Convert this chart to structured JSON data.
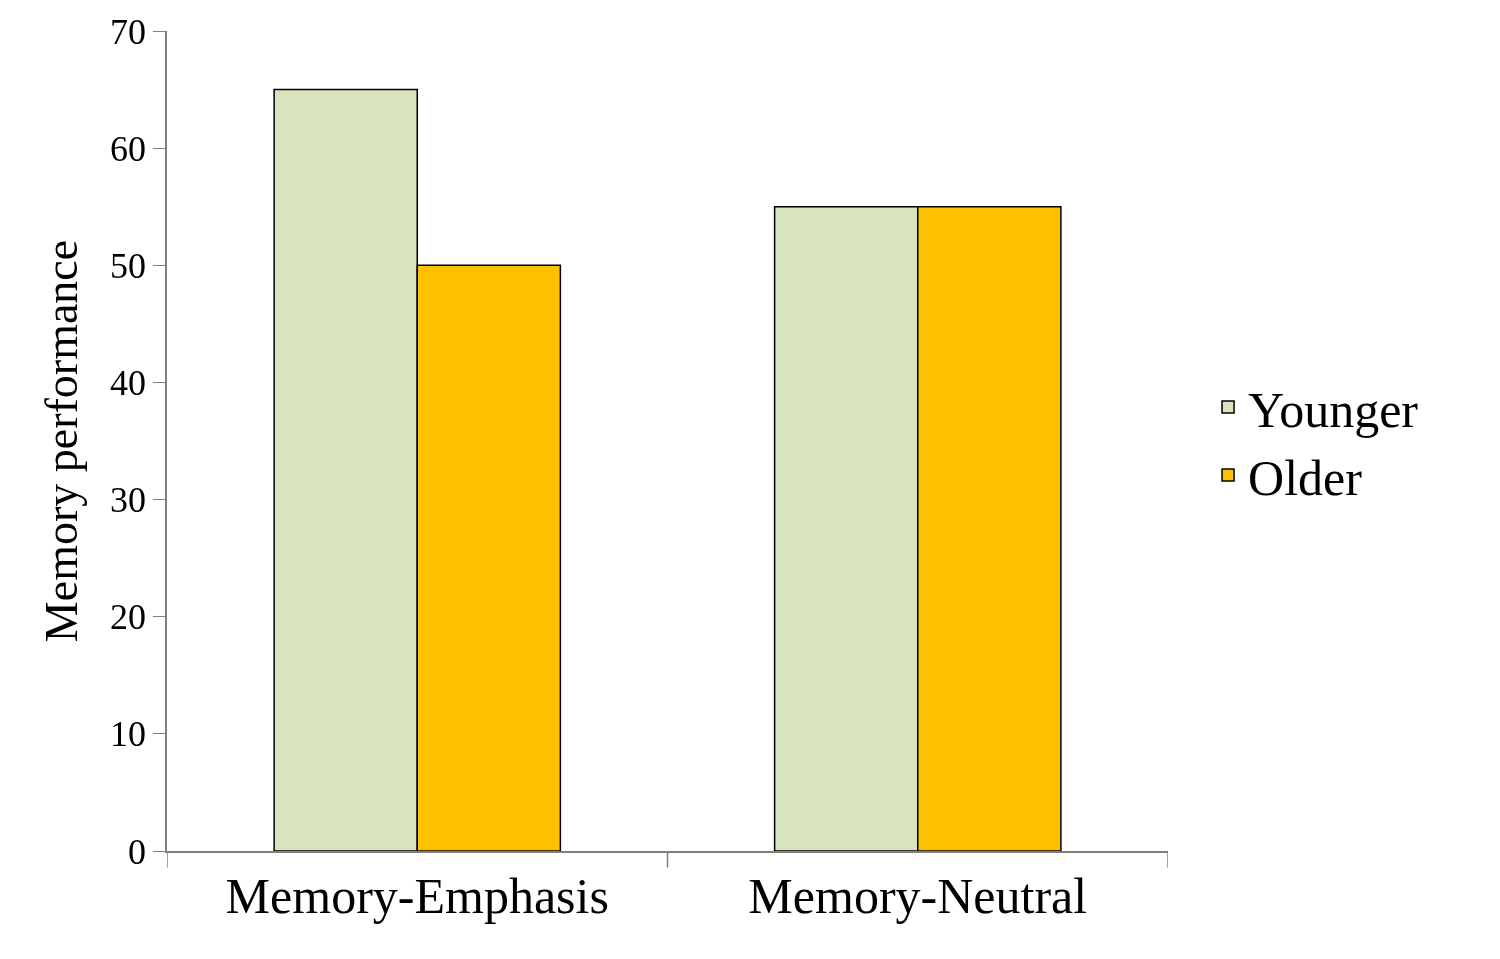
{
  "chart_data": {
    "type": "bar",
    "ylabel": "Memory performance",
    "categories": [
      "Memory-Emphasis",
      "Memory-Neutral"
    ],
    "series": [
      {
        "name": "Younger",
        "color": "#d7e4bd",
        "values": [
          65,
          55
        ]
      },
      {
        "name": "Older",
        "color": "#ffc000",
        "values": [
          50,
          55
        ]
      }
    ],
    "ylim": [
      0,
      70
    ],
    "yticks": [
      0,
      10,
      20,
      30,
      40,
      50,
      60,
      70
    ],
    "legend": "right"
  }
}
